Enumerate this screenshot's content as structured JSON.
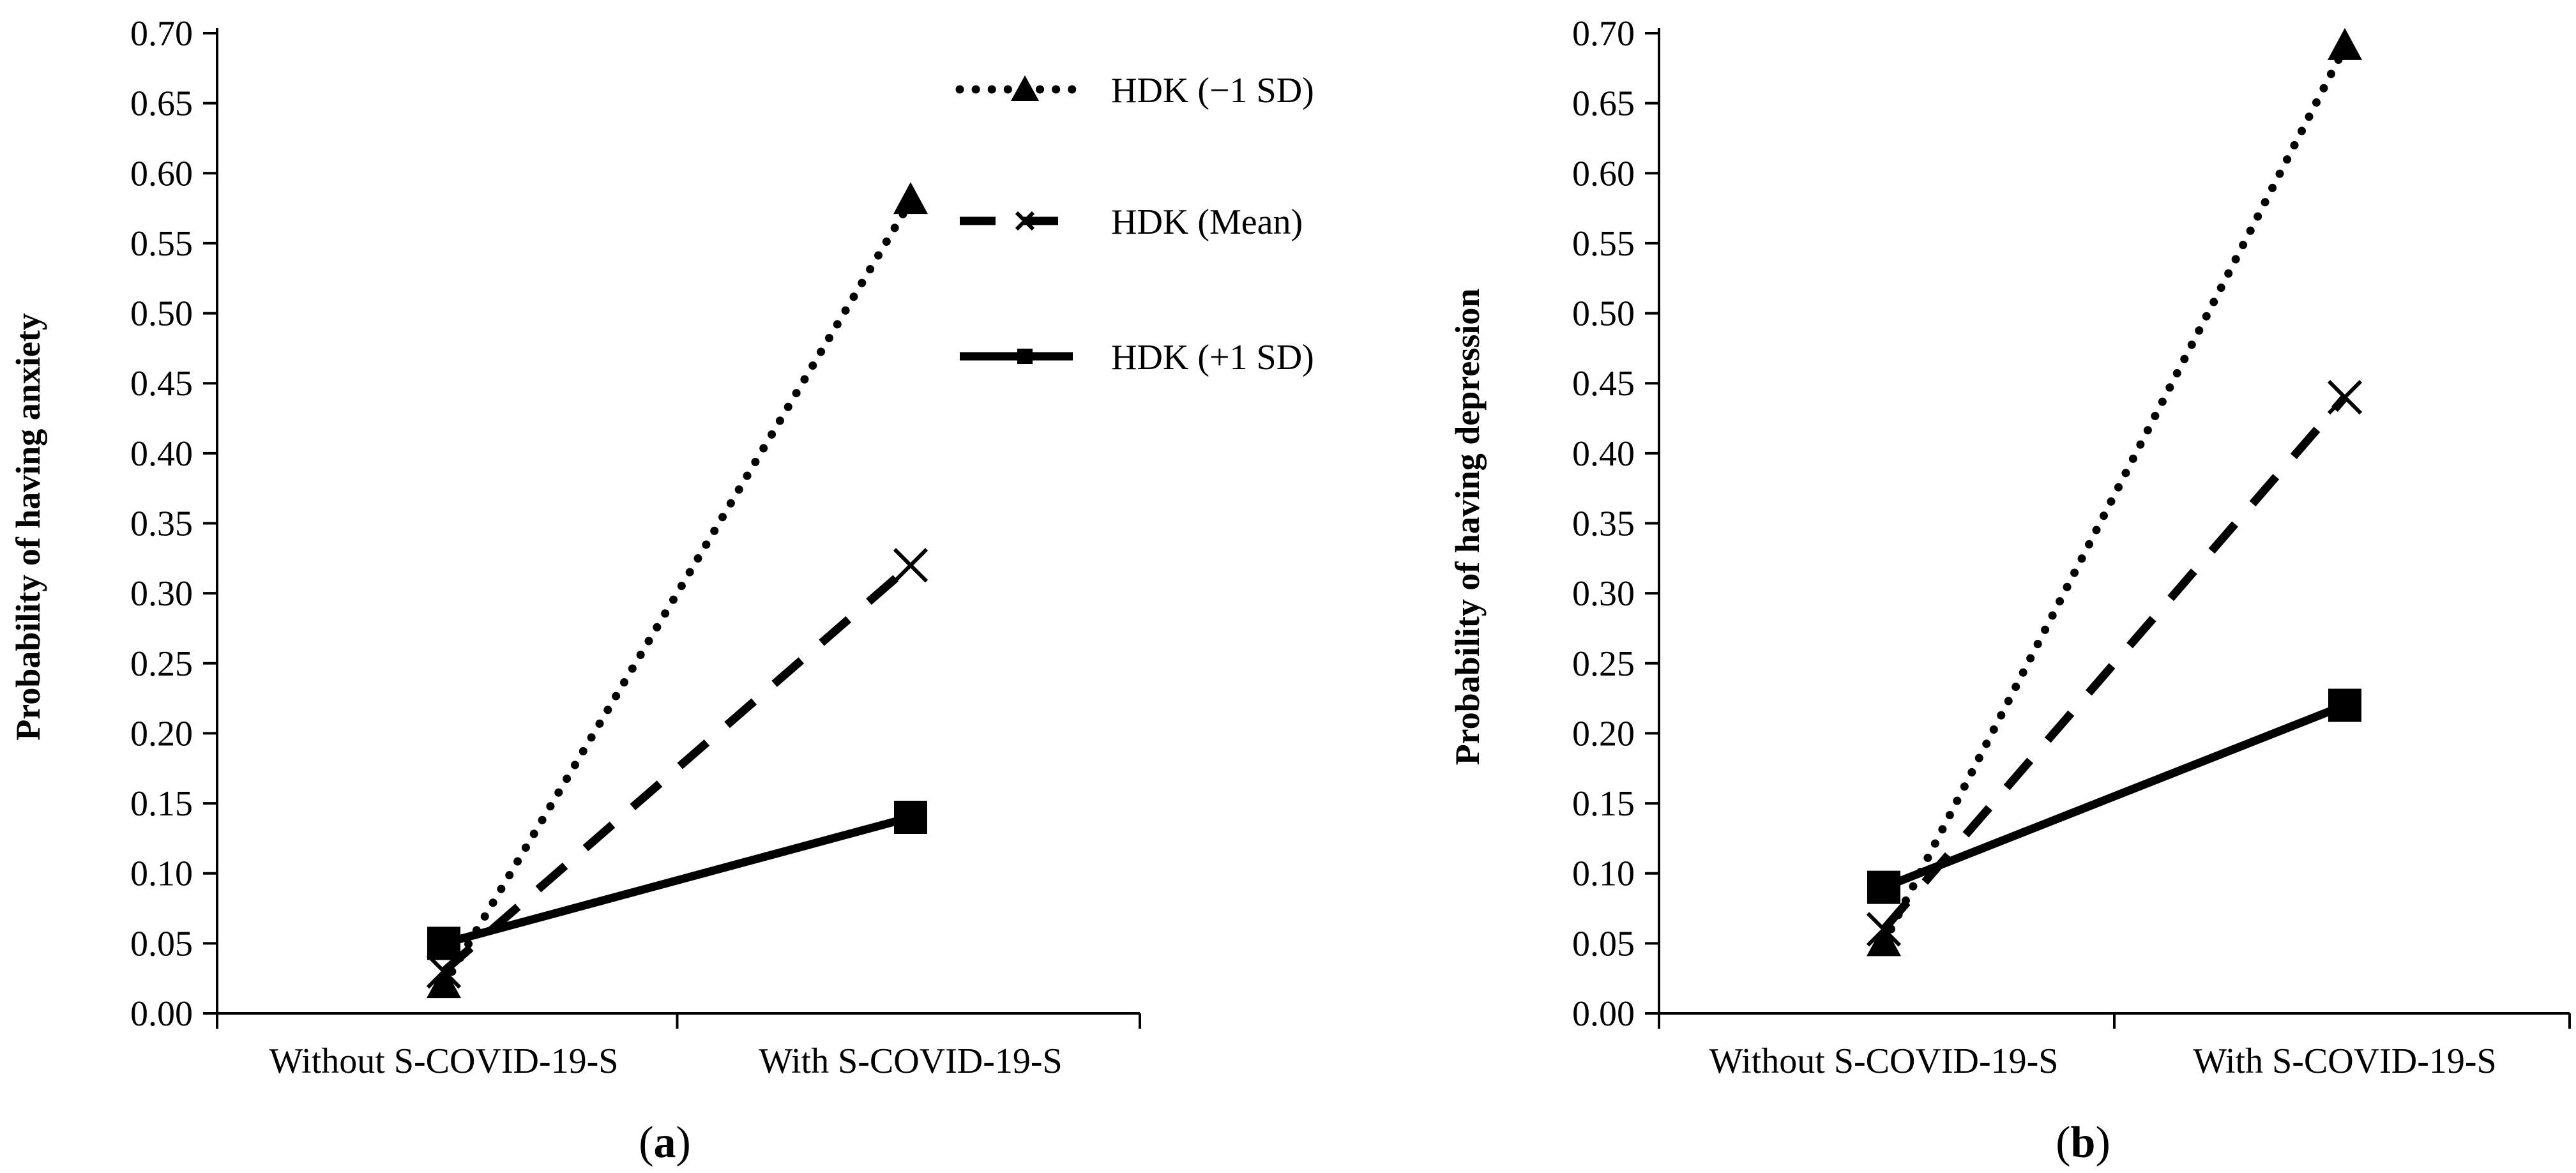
{
  "colors": {
    "ink": "#000000",
    "background": "#ffffff"
  },
  "legend": [
    {
      "label": "HDK (−1 SD)",
      "style": "dotted",
      "marker": "triangle"
    },
    {
      "label": "HDK (Mean)",
      "style": "dashed",
      "marker": "x"
    },
    {
      "label": "HDK (+1 SD)",
      "style": "solid",
      "marker": "square"
    }
  ],
  "chart_data": [
    {
      "type": "line",
      "panel_label": "(a)",
      "panel_letter": "a",
      "title": "",
      "xlabel": "",
      "ylabel": "Probability of having anxiety",
      "categories": [
        "Without S-COVID-19-S",
        "With S-COVID-19-S"
      ],
      "ylim": [
        0,
        0.7
      ],
      "ytick_step": 0.05,
      "yticks": [
        "0.00",
        "0.05",
        "0.10",
        "0.15",
        "0.20",
        "0.25",
        "0.30",
        "0.35",
        "0.40",
        "0.45",
        "0.50",
        "0.55",
        "0.60",
        "0.65",
        "0.70"
      ],
      "grid": false,
      "series": [
        {
          "name": "HDK (−1 SD)",
          "style": "dotted",
          "marker": "triangle",
          "values": [
            0.02,
            0.58
          ]
        },
        {
          "name": "HDK (Mean)",
          "style": "dashed",
          "marker": "x",
          "values": [
            0.03,
            0.32
          ]
        },
        {
          "name": "HDK (+1 SD)",
          "style": "solid",
          "marker": "square",
          "values": [
            0.05,
            0.14
          ]
        }
      ]
    },
    {
      "type": "line",
      "panel_label": "(b)",
      "panel_letter": "b",
      "title": "",
      "xlabel": "",
      "ylabel": "Probability of having depression",
      "categories": [
        "Without S-COVID-19-S",
        "With S-COVID-19-S"
      ],
      "ylim": [
        0,
        0.7
      ],
      "ytick_step": 0.05,
      "yticks": [
        "0.00",
        "0.05",
        "0.10",
        "0.15",
        "0.20",
        "0.25",
        "0.30",
        "0.35",
        "0.40",
        "0.45",
        "0.50",
        "0.55",
        "0.60",
        "0.65",
        "0.70"
      ],
      "grid": false,
      "series": [
        {
          "name": "HDK (−1 SD)",
          "style": "dotted",
          "marker": "triangle",
          "values": [
            0.05,
            0.69
          ]
        },
        {
          "name": "HDK (Mean)",
          "style": "dashed",
          "marker": "x",
          "values": [
            0.06,
            0.44
          ]
        },
        {
          "name": "HDK (+1 SD)",
          "style": "solid",
          "marker": "square",
          "values": [
            0.09,
            0.22
          ]
        }
      ]
    }
  ]
}
